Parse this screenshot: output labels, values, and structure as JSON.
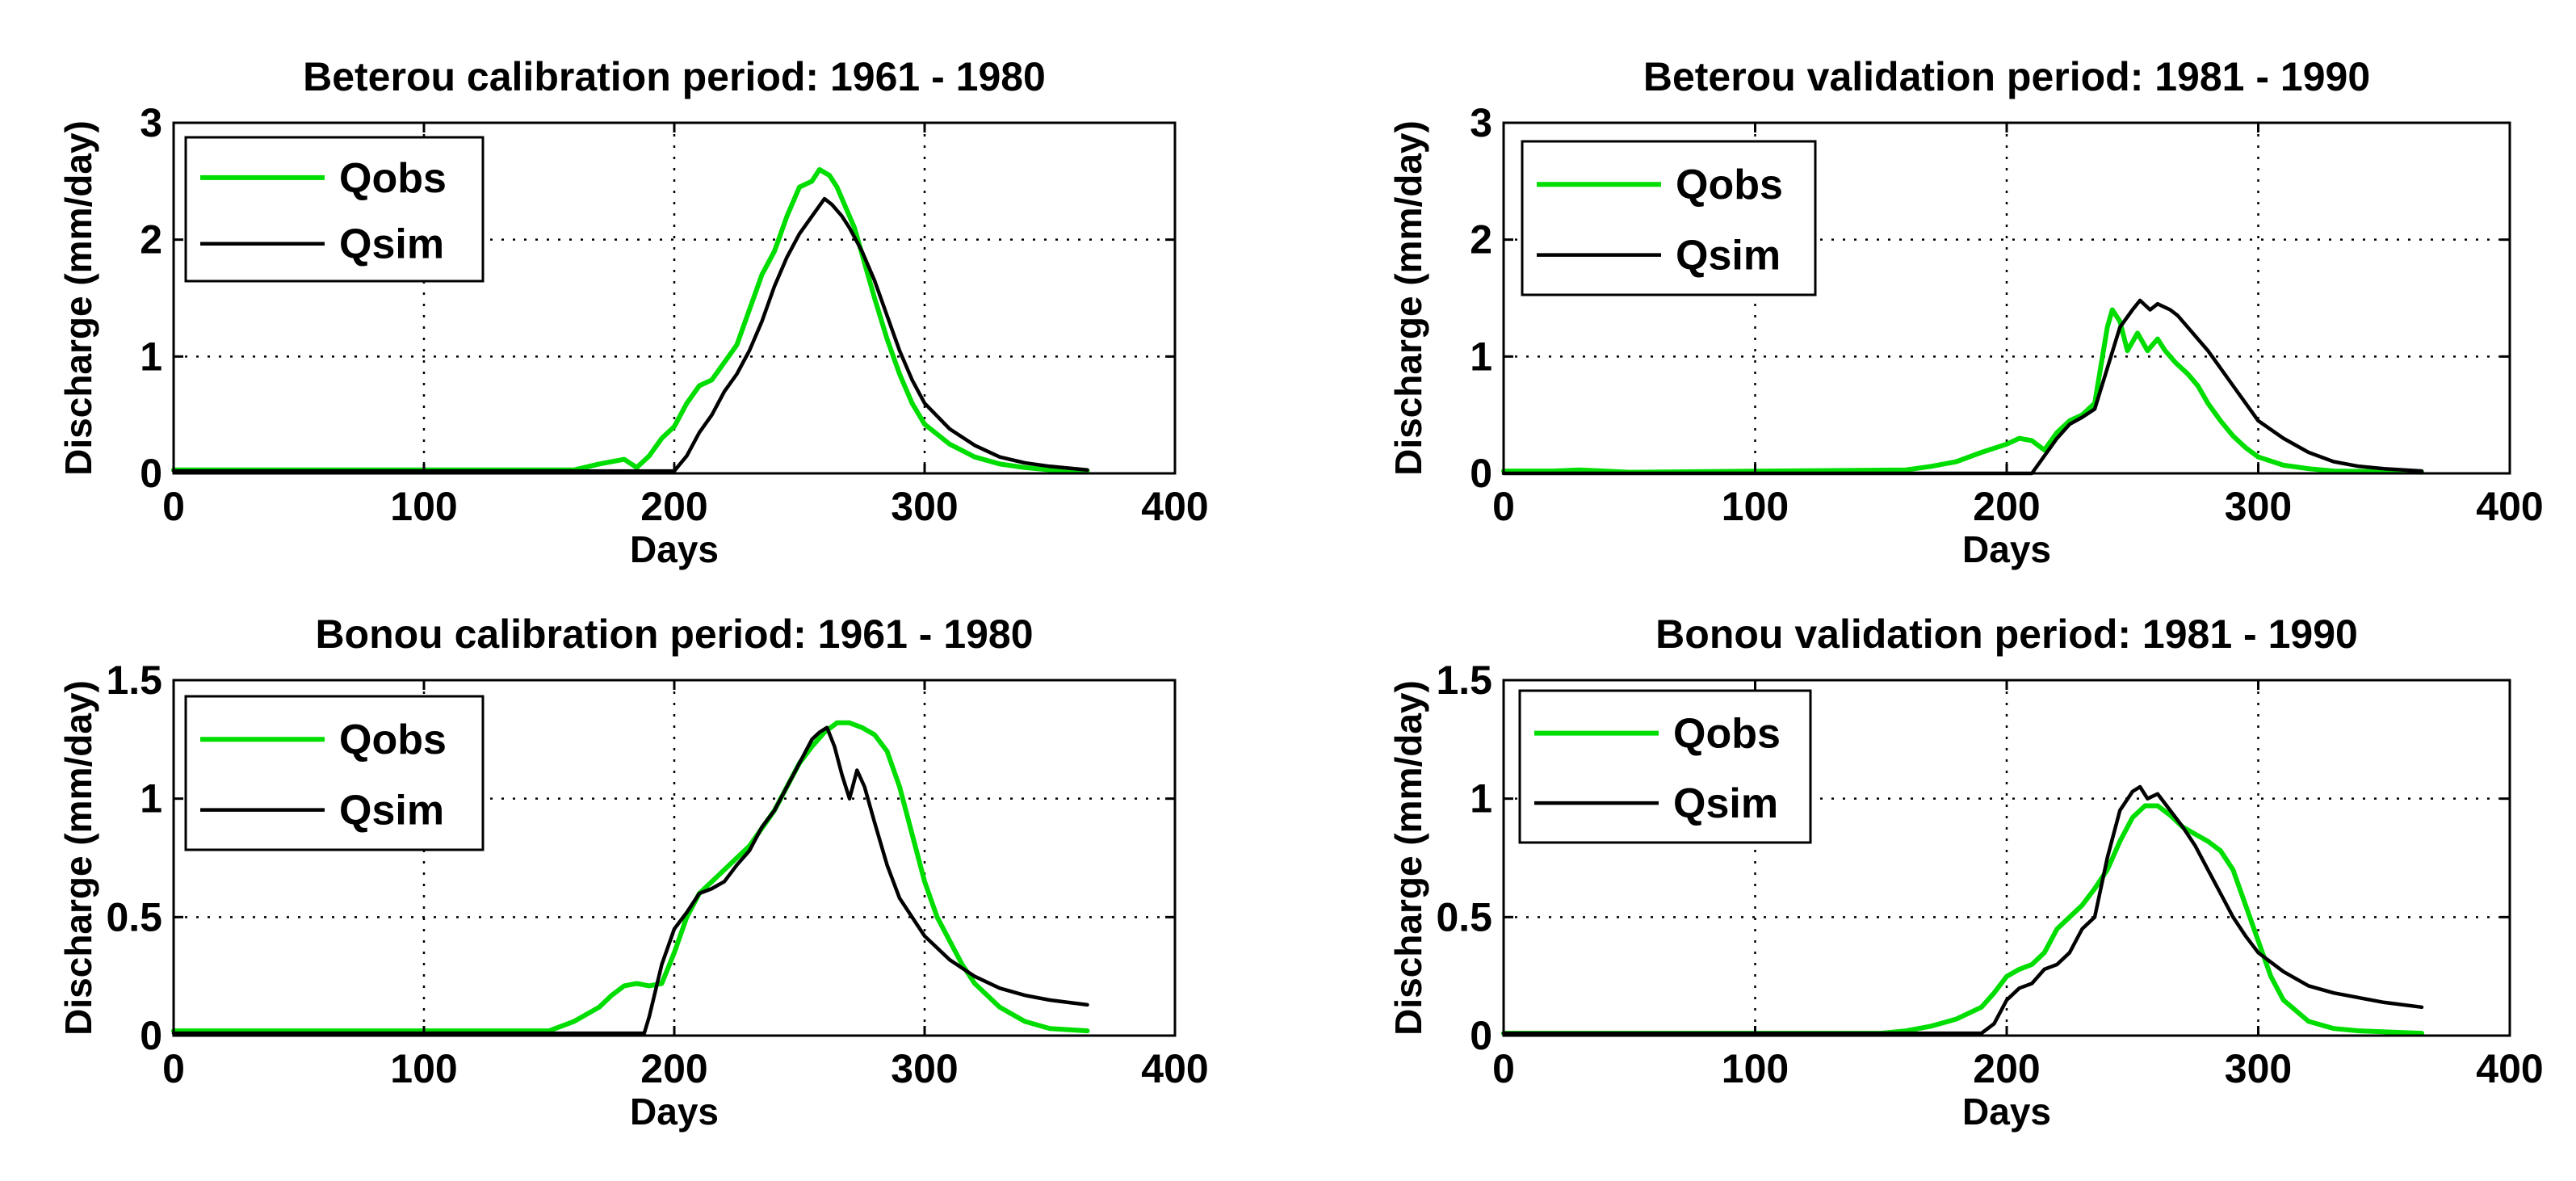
{
  "chart_data": [
    {
      "type": "line",
      "title": "Beterou calibration period: 1961 - 1980",
      "xlabel": "Days",
      "ylabel": "Discharge (mm/day)",
      "xlim": [
        0,
        400
      ],
      "ylim": [
        0,
        3
      ],
      "xticks": [
        "0",
        "100",
        "200",
        "300",
        "400"
      ],
      "yticks": [
        "0",
        "1",
        "2",
        "3"
      ],
      "grid": true,
      "legend_position": "top-left",
      "series": [
        {
          "name": "Qobs",
          "color": "#00dd00",
          "x": [
            0,
            160,
            170,
            180,
            185,
            190,
            195,
            200,
            205,
            210,
            215,
            220,
            225,
            230,
            235,
            240,
            245,
            250,
            255,
            258,
            262,
            265,
            268,
            272,
            276,
            280,
            285,
            290,
            295,
            300,
            310,
            320,
            330,
            340,
            350,
            365
          ],
          "y": [
            0.03,
            0.03,
            0.08,
            0.12,
            0.05,
            0.15,
            0.3,
            0.4,
            0.6,
            0.75,
            0.8,
            0.95,
            1.1,
            1.4,
            1.7,
            1.9,
            2.2,
            2.45,
            2.5,
            2.6,
            2.55,
            2.45,
            2.3,
            2.1,
            1.8,
            1.5,
            1.15,
            0.85,
            0.6,
            0.42,
            0.25,
            0.14,
            0.08,
            0.05,
            0.03,
            0.02
          ]
        },
        {
          "name": "Qsim",
          "color": "#000000",
          "x": [
            0,
            200,
            205,
            210,
            215,
            220,
            225,
            230,
            235,
            240,
            245,
            250,
            255,
            260,
            263,
            267,
            270,
            275,
            280,
            285,
            290,
            295,
            300,
            310,
            320,
            330,
            340,
            350,
            365
          ],
          "y": [
            0.02,
            0.02,
            0.15,
            0.35,
            0.5,
            0.7,
            0.85,
            1.05,
            1.3,
            1.6,
            1.85,
            2.05,
            2.2,
            2.35,
            2.3,
            2.2,
            2.1,
            1.9,
            1.65,
            1.35,
            1.05,
            0.8,
            0.6,
            0.38,
            0.24,
            0.14,
            0.09,
            0.06,
            0.03
          ]
        }
      ]
    },
    {
      "type": "line",
      "title": "Beterou validation period: 1981 - 1990",
      "xlabel": "Days",
      "ylabel": "Discharge (mm/day)",
      "xlim": [
        0,
        400
      ],
      "ylim": [
        0,
        3
      ],
      "xticks": [
        "0",
        "100",
        "200",
        "300",
        "400"
      ],
      "yticks": [
        "0",
        "1",
        "2",
        "3"
      ],
      "grid": true,
      "legend_position": "top-left",
      "series": [
        {
          "name": "Qobs",
          "color": "#00dd00",
          "x": [
            0,
            20,
            30,
            40,
            50,
            160,
            170,
            180,
            190,
            200,
            205,
            210,
            215,
            220,
            225,
            230,
            235,
            240,
            242,
            245,
            248,
            252,
            256,
            260,
            263,
            267,
            272,
            276,
            280,
            285,
            290,
            295,
            300,
            310,
            320,
            330,
            365
          ],
          "y": [
            0.02,
            0.02,
            0.03,
            0.02,
            0.01,
            0.03,
            0.06,
            0.1,
            0.18,
            0.25,
            0.3,
            0.28,
            0.2,
            0.35,
            0.45,
            0.5,
            0.6,
            1.25,
            1.4,
            1.3,
            1.05,
            1.2,
            1.05,
            1.15,
            1.05,
            0.95,
            0.85,
            0.75,
            0.6,
            0.45,
            0.32,
            0.22,
            0.14,
            0.07,
            0.04,
            0.02,
            0.01
          ]
        },
        {
          "name": "Qsim",
          "color": "#000000",
          "x": [
            0,
            210,
            215,
            220,
            225,
            230,
            235,
            240,
            245,
            250,
            253,
            257,
            260,
            265,
            268,
            272,
            276,
            280,
            285,
            290,
            295,
            300,
            310,
            320,
            330,
            340,
            350,
            365
          ],
          "y": [
            0.0,
            0.0,
            0.15,
            0.3,
            0.42,
            0.48,
            0.55,
            0.9,
            1.25,
            1.4,
            1.48,
            1.4,
            1.45,
            1.4,
            1.35,
            1.25,
            1.15,
            1.05,
            0.9,
            0.75,
            0.6,
            0.45,
            0.3,
            0.18,
            0.1,
            0.06,
            0.04,
            0.02
          ]
        }
      ]
    },
    {
      "type": "line",
      "title": "Bonou calibration period: 1961 - 1980",
      "xlabel": "Days",
      "ylabel": "Discharge (mm/day)",
      "xlim": [
        0,
        400
      ],
      "ylim": [
        0,
        1.5
      ],
      "xticks": [
        "0",
        "100",
        "200",
        "300",
        "400"
      ],
      "yticks": [
        "0",
        "0.5",
        "1",
        "1.5"
      ],
      "grid": true,
      "legend_position": "top-left",
      "series": [
        {
          "name": "Qobs",
          "color": "#00dd00",
          "x": [
            0,
            150,
            160,
            170,
            175,
            180,
            185,
            190,
            195,
            200,
            205,
            210,
            220,
            230,
            240,
            245,
            250,
            255,
            260,
            265,
            270,
            275,
            280,
            285,
            290,
            295,
            300,
            305,
            310,
            315,
            320,
            330,
            340,
            350,
            365
          ],
          "y": [
            0.02,
            0.02,
            0.06,
            0.12,
            0.17,
            0.21,
            0.22,
            0.21,
            0.22,
            0.35,
            0.5,
            0.6,
            0.7,
            0.8,
            0.95,
            1.05,
            1.15,
            1.22,
            1.28,
            1.32,
            1.32,
            1.3,
            1.27,
            1.2,
            1.05,
            0.85,
            0.65,
            0.5,
            0.4,
            0.3,
            0.22,
            0.12,
            0.06,
            0.03,
            0.02
          ]
        },
        {
          "name": "Qsim",
          "color": "#000000",
          "x": [
            0,
            188,
            190,
            195,
            200,
            205,
            210,
            215,
            220,
            225,
            230,
            235,
            240,
            245,
            250,
            255,
            258,
            261,
            264,
            267,
            270,
            273,
            276,
            280,
            285,
            290,
            300,
            310,
            320,
            330,
            340,
            350,
            365
          ],
          "y": [
            0.01,
            0.01,
            0.08,
            0.3,
            0.45,
            0.52,
            0.6,
            0.62,
            0.65,
            0.72,
            0.78,
            0.88,
            0.95,
            1.05,
            1.15,
            1.25,
            1.28,
            1.3,
            1.22,
            1.1,
            1.0,
            1.12,
            1.05,
            0.9,
            0.72,
            0.58,
            0.42,
            0.32,
            0.25,
            0.2,
            0.17,
            0.15,
            0.13
          ]
        }
      ]
    },
    {
      "type": "line",
      "title": "Bonou validation period: 1981 - 1990",
      "xlabel": "Days",
      "ylabel": "Discharge (mm/day)",
      "xlim": [
        0,
        400
      ],
      "ylim": [
        0,
        1.5
      ],
      "xticks": [
        "0",
        "100",
        "200",
        "300",
        "400"
      ],
      "yticks": [
        "0",
        "0.5",
        "1",
        "1.5"
      ],
      "grid": true,
      "legend_position": "top-left",
      "series": [
        {
          "name": "Qobs",
          "color": "#00dd00",
          "x": [
            0,
            150,
            160,
            170,
            180,
            190,
            195,
            200,
            205,
            210,
            215,
            220,
            225,
            230,
            235,
            240,
            245,
            250,
            255,
            260,
            265,
            270,
            275,
            280,
            285,
            290,
            295,
            300,
            305,
            310,
            320,
            330,
            340,
            365
          ],
          "y": [
            0.01,
            0.01,
            0.02,
            0.04,
            0.07,
            0.12,
            0.18,
            0.25,
            0.28,
            0.3,
            0.35,
            0.45,
            0.5,
            0.55,
            0.62,
            0.7,
            0.82,
            0.92,
            0.97,
            0.97,
            0.93,
            0.88,
            0.85,
            0.82,
            0.78,
            0.7,
            0.55,
            0.4,
            0.25,
            0.15,
            0.06,
            0.03,
            0.02,
            0.01
          ]
        },
        {
          "name": "Qsim",
          "color": "#000000",
          "x": [
            0,
            190,
            195,
            200,
            205,
            210,
            215,
            220,
            225,
            230,
            235,
            240,
            245,
            250,
            253,
            256,
            260,
            265,
            270,
            275,
            280,
            285,
            290,
            295,
            300,
            310,
            320,
            330,
            340,
            350,
            365
          ],
          "y": [
            0.01,
            0.01,
            0.05,
            0.15,
            0.2,
            0.22,
            0.28,
            0.3,
            0.35,
            0.45,
            0.5,
            0.75,
            0.95,
            1.03,
            1.05,
            1.0,
            1.02,
            0.95,
            0.88,
            0.8,
            0.7,
            0.6,
            0.5,
            0.42,
            0.35,
            0.27,
            0.21,
            0.18,
            0.16,
            0.14,
            0.12
          ]
        }
      ]
    }
  ]
}
